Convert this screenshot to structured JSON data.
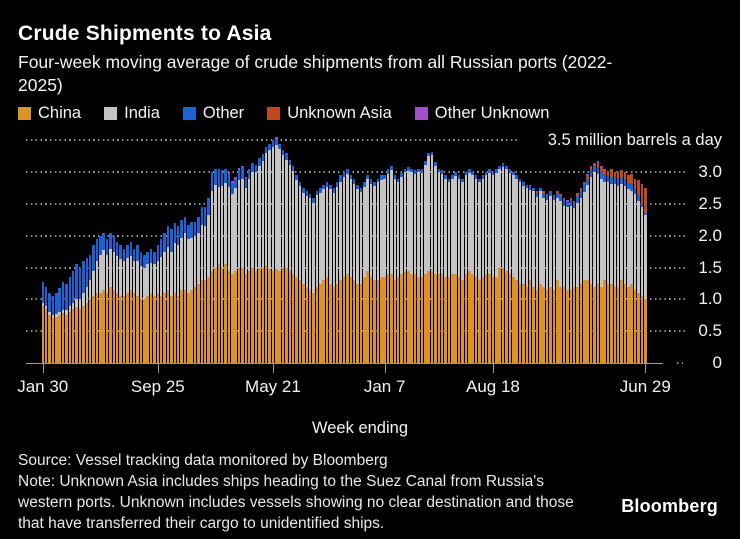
{
  "header": {
    "title": "Crude Shipments to Asia",
    "subtitle": "Four-week moving average of crude shipments from all Russian ports (2022-2025)"
  },
  "footer": {
    "source": "Source: Vessel tracking data monitored by Bloomberg",
    "note": "Note: Unknown Asia includes ships heading to the Suez Canal from Russia's western ports. Unknown includes vessels showing no clear destination and those that have transferred their cargo to unidentified ships.",
    "logo": "Bloomberg"
  },
  "colors": {
    "background": "#000000",
    "china": "#DE9126",
    "india": "#C4C4C4",
    "other": "#1A62D5",
    "unknown_asia": "#C2491D",
    "other_unknown": "#A14FC9",
    "grid": "#8F8F8F",
    "axis": "#9A9A9A",
    "text": "#F2F2F2"
  },
  "chart_data": {
    "type": "bar",
    "stacked": true,
    "xlabel": "Week ending",
    "ylabel": "",
    "ylim": [
      0,
      3.5
    ],
    "grid": "dotted-horizontal",
    "legend_position": "top-left",
    "unit_tick": {
      "value": 3.5,
      "label": "3.5 million barrels a day"
    },
    "ytick_values": [
      0,
      0.5,
      1.0,
      1.5,
      2.0,
      2.5,
      3.0
    ],
    "ytick_labels": [
      "0",
      "0.5",
      "1.0",
      "1.5",
      "2.0",
      "2.5",
      "3.0"
    ],
    "xtick_labels": [
      "Jan 30",
      "Sep 25",
      "May 21",
      "Jan 7",
      "Aug 18",
      "Jun 29"
    ],
    "xtick_week_index": [
      0,
      34,
      68,
      101,
      133,
      178
    ],
    "x_unit": "weekly bars, Jan 30 2022 through Jun 29 2025",
    "series": [
      {
        "name": "China",
        "color": "#DE9126",
        "values": [
          0.9,
          0.85,
          0.75,
          0.7,
          0.72,
          0.75,
          0.78,
          0.75,
          0.8,
          0.85,
          0.88,
          0.85,
          0.9,
          0.95,
          1.0,
          1.05,
          1.1,
          1.1,
          1.15,
          1.1,
          1.2,
          1.15,
          1.1,
          1.05,
          1.05,
          1.1,
          1.15,
          1.1,
          1.05,
          1.0,
          1.0,
          1.05,
          1.1,
          1.05,
          1.1,
          1.05,
          1.1,
          1.15,
          1.05,
          1.1,
          1.05,
          1.15,
          1.15,
          1.1,
          1.15,
          1.2,
          1.25,
          1.3,
          1.3,
          1.35,
          1.45,
          1.5,
          1.55,
          1.5,
          1.55,
          1.45,
          1.4,
          1.45,
          1.5,
          1.5,
          1.4,
          1.45,
          1.5,
          1.45,
          1.5,
          1.5,
          1.52,
          1.48,
          1.45,
          1.48,
          1.45,
          1.5,
          1.5,
          1.45,
          1.4,
          1.35,
          1.3,
          1.25,
          1.2,
          1.15,
          1.1,
          1.2,
          1.25,
          1.3,
          1.35,
          1.25,
          1.2,
          1.25,
          1.3,
          1.35,
          1.4,
          1.35,
          1.3,
          1.25,
          1.25,
          1.35,
          1.45,
          1.35,
          1.3,
          1.3,
          1.35,
          1.35,
          1.4,
          1.4,
          1.3,
          1.35,
          1.4,
          1.45,
          1.45,
          1.4,
          1.4,
          1.35,
          1.35,
          1.4,
          1.45,
          1.45,
          1.4,
          1.4,
          1.4,
          1.35,
          1.35,
          1.4,
          1.4,
          1.35,
          1.3,
          1.4,
          1.45,
          1.4,
          1.35,
          1.3,
          1.35,
          1.4,
          1.4,
          1.35,
          1.35,
          1.5,
          1.5,
          1.45,
          1.4,
          1.35,
          1.3,
          1.25,
          1.25,
          1.2,
          1.3,
          1.2,
          1.15,
          1.25,
          1.2,
          1.15,
          1.2,
          1.15,
          1.3,
          1.2,
          1.2,
          1.15,
          1.15,
          1.2,
          1.2,
          1.25,
          1.3,
          1.3,
          1.25,
          1.2,
          1.25,
          1.2,
          1.3,
          1.25,
          1.25,
          1.2,
          1.2,
          1.3,
          1.25,
          1.2,
          1.25,
          1.15,
          1.1,
          1.05,
          1.0
        ]
      },
      {
        "name": "India",
        "color": "#C4C4C4",
        "values": [
          0.05,
          0.05,
          0.05,
          0.05,
          0.05,
          0.05,
          0.05,
          0.08,
          0.1,
          0.1,
          0.12,
          0.15,
          0.2,
          0.25,
          0.3,
          0.4,
          0.5,
          0.6,
          0.62,
          0.6,
          0.6,
          0.6,
          0.58,
          0.58,
          0.55,
          0.55,
          0.53,
          0.5,
          0.55,
          0.53,
          0.5,
          0.5,
          0.48,
          0.5,
          0.5,
          0.62,
          0.65,
          0.68,
          0.7,
          0.78,
          0.8,
          0.82,
          0.9,
          0.85,
          0.82,
          0.8,
          0.8,
          0.87,
          0.85,
          0.97,
          1.25,
          1.3,
          1.22,
          1.28,
          1.28,
          1.32,
          1.25,
          1.3,
          1.38,
          1.4,
          1.35,
          1.45,
          1.5,
          1.55,
          1.6,
          1.68,
          1.78,
          1.87,
          1.95,
          1.95,
          1.92,
          1.77,
          1.7,
          1.67,
          1.62,
          1.52,
          1.49,
          1.42,
          1.42,
          1.44,
          1.42,
          1.44,
          1.42,
          1.44,
          1.42,
          1.49,
          1.47,
          1.52,
          1.55,
          1.57,
          1.57,
          1.54,
          1.52,
          1.49,
          1.44,
          1.42,
          1.44,
          1.47,
          1.49,
          1.54,
          1.52,
          1.54,
          1.57,
          1.64,
          1.59,
          1.5,
          1.52,
          1.55,
          1.57,
          1.6,
          1.57,
          1.65,
          1.64,
          1.72,
          1.8,
          1.82,
          1.7,
          1.6,
          1.57,
          1.55,
          1.49,
          1.5,
          1.54,
          1.55,
          1.54,
          1.55,
          1.54,
          1.55,
          1.54,
          1.55,
          1.54,
          1.55,
          1.59,
          1.6,
          1.64,
          1.55,
          1.59,
          1.6,
          1.59,
          1.6,
          1.59,
          1.6,
          1.54,
          1.55,
          1.42,
          1.5,
          1.46,
          1.45,
          1.4,
          1.41,
          1.42,
          1.42,
          1.29,
          1.35,
          1.27,
          1.3,
          1.32,
          1.23,
          1.32,
          1.35,
          1.39,
          1.5,
          1.67,
          1.8,
          1.72,
          1.7,
          1.55,
          1.59,
          1.56,
          1.62,
          1.58,
          1.51,
          1.53,
          1.53,
          1.46,
          1.5,
          1.44,
          1.4,
          1.32
        ]
      },
      {
        "name": "Other",
        "color": "#1A62D5",
        "values": [
          0.32,
          0.3,
          0.3,
          0.3,
          0.33,
          0.38,
          0.45,
          0.42,
          0.45,
          0.5,
          0.55,
          0.5,
          0.5,
          0.45,
          0.4,
          0.4,
          0.35,
          0.3,
          0.28,
          0.25,
          0.25,
          0.25,
          0.22,
          0.22,
          0.2,
          0.2,
          0.22,
          0.2,
          0.25,
          0.22,
          0.2,
          0.2,
          0.22,
          0.2,
          0.25,
          0.28,
          0.3,
          0.32,
          0.35,
          0.32,
          0.3,
          0.28,
          0.25,
          0.22,
          0.25,
          0.22,
          0.25,
          0.28,
          0.3,
          0.28,
          0.3,
          0.25,
          0.28,
          0.25,
          0.22,
          0.2,
          0.18,
          0.15,
          0.15,
          0.18,
          0.15,
          0.15,
          0.15,
          0.12,
          0.12,
          0.1,
          0.1,
          0.1,
          0.1,
          0.1,
          0.08,
          0.08,
          0.1,
          0.08,
          0.08,
          0.08,
          0.06,
          0.08,
          0.08,
          0.06,
          0.08,
          0.06,
          0.08,
          0.06,
          0.08,
          0.06,
          0.08,
          0.08,
          0.1,
          0.08,
          0.08,
          0.06,
          0.08,
          0.06,
          0.06,
          0.08,
          0.06,
          0.08,
          0.06,
          0.06,
          0.08,
          0.06,
          0.08,
          0.06,
          0.06,
          0.05,
          0.06,
          0.05,
          0.06,
          0.05,
          0.06,
          0.05,
          0.06,
          0.05,
          0.06,
          0.05,
          0.06,
          0.05,
          0.06,
          0.05,
          0.06,
          0.05,
          0.06,
          0.05,
          0.06,
          0.05,
          0.06,
          0.05,
          0.06,
          0.05,
          0.06,
          0.05,
          0.06,
          0.05,
          0.06,
          0.05,
          0.06,
          0.05,
          0.06,
          0.05,
          0.06,
          0.05,
          0.06,
          0.05,
          0.06,
          0.05,
          0.06,
          0.05,
          0.08,
          0.06,
          0.08,
          0.06,
          0.08,
          0.08,
          0.1,
          0.08,
          0.1,
          0.08,
          0.1,
          0.1,
          0.12,
          0.1,
          0.12,
          0.1,
          0.1,
          0.12,
          0.1,
          0.1,
          0.12,
          0.1,
          0.12,
          0.1,
          0.12,
          0.1,
          0.12,
          0.1,
          0.12,
          0.06,
          0.04
        ]
      },
      {
        "name": "Unknown Asia",
        "color": "#C2491D",
        "values": [
          0,
          0,
          0,
          0,
          0,
          0,
          0,
          0,
          0,
          0,
          0,
          0,
          0,
          0,
          0,
          0,
          0,
          0,
          0,
          0,
          0,
          0,
          0,
          0,
          0,
          0,
          0,
          0,
          0,
          0,
          0,
          0,
          0,
          0,
          0,
          0,
          0,
          0,
          0,
          0,
          0,
          0,
          0,
          0,
          0,
          0,
          0,
          0,
          0,
          0,
          0,
          0,
          0,
          0,
          0,
          0,
          0,
          0,
          0,
          0,
          0,
          0,
          0,
          0,
          0,
          0,
          0,
          0,
          0,
          0,
          0,
          0,
          0,
          0,
          0,
          0,
          0,
          0,
          0,
          0,
          0,
          0,
          0,
          0,
          0,
          0,
          0,
          0,
          0,
          0,
          0,
          0,
          0,
          0,
          0,
          0,
          0,
          0,
          0,
          0,
          0,
          0,
          0,
          0,
          0,
          0,
          0,
          0,
          0,
          0,
          0,
          0,
          0,
          0,
          0,
          0,
          0,
          0,
          0,
          0,
          0,
          0,
          0,
          0,
          0,
          0,
          0,
          0,
          0,
          0,
          0,
          0,
          0,
          0,
          0,
          0,
          0,
          0,
          0,
          0,
          0,
          0,
          0,
          0,
          0.02,
          0,
          0.03,
          0,
          0.02,
          0.03,
          0,
          0.02,
          0.03,
          0.02,
          0.03,
          0.02,
          0.03,
          0.04,
          0.03,
          0.05,
          0.04,
          0.05,
          0.06,
          0.05,
          0.08,
          0.06,
          0.08,
          0.06,
          0.1,
          0.08,
          0.1,
          0.12,
          0.1,
          0.12,
          0.15,
          0.15,
          0.22,
          0.3,
          0.4
        ]
      },
      {
        "name": "Other Unknown",
        "color": "#A14FC9",
        "values": [
          0,
          0,
          0,
          0,
          0,
          0,
          0,
          0,
          0,
          0,
          0,
          0,
          0,
          0,
          0,
          0,
          0,
          0,
          0,
          0,
          0,
          0,
          0,
          0,
          0,
          0,
          0,
          0,
          0,
          0,
          0,
          0,
          0,
          0,
          0,
          0,
          0,
          0,
          0,
          0,
          0,
          0,
          0,
          0,
          0,
          0,
          0,
          0,
          0,
          0,
          0,
          0,
          0,
          0,
          0,
          0.03,
          0.03,
          0.02,
          0.03,
          0.02,
          0.02,
          0,
          0,
          0,
          0,
          0,
          0,
          0,
          0,
          0.02,
          0,
          0,
          0,
          0,
          0,
          0,
          0,
          0,
          0,
          0,
          0,
          0,
          0,
          0,
          0,
          0,
          0,
          0,
          0,
          0,
          0,
          0,
          0,
          0,
          0,
          0,
          0,
          0,
          0,
          0,
          0,
          0,
          0,
          0,
          0,
          0,
          0,
          0,
          0,
          0,
          0,
          0,
          0,
          0,
          0,
          0,
          0,
          0,
          0,
          0,
          0,
          0,
          0,
          0,
          0,
          0,
          0,
          0,
          0,
          0,
          0,
          0,
          0,
          0,
          0,
          0,
          0,
          0,
          0,
          0,
          0,
          0,
          0,
          0,
          0,
          0,
          0,
          0,
          0,
          0,
          0,
          0,
          0,
          0,
          0,
          0.02,
          0,
          0,
          0.02,
          0,
          0,
          0.02,
          0,
          0,
          0.02,
          0.02,
          0.02,
          0.02,
          0.02
        ]
      }
    ]
  }
}
